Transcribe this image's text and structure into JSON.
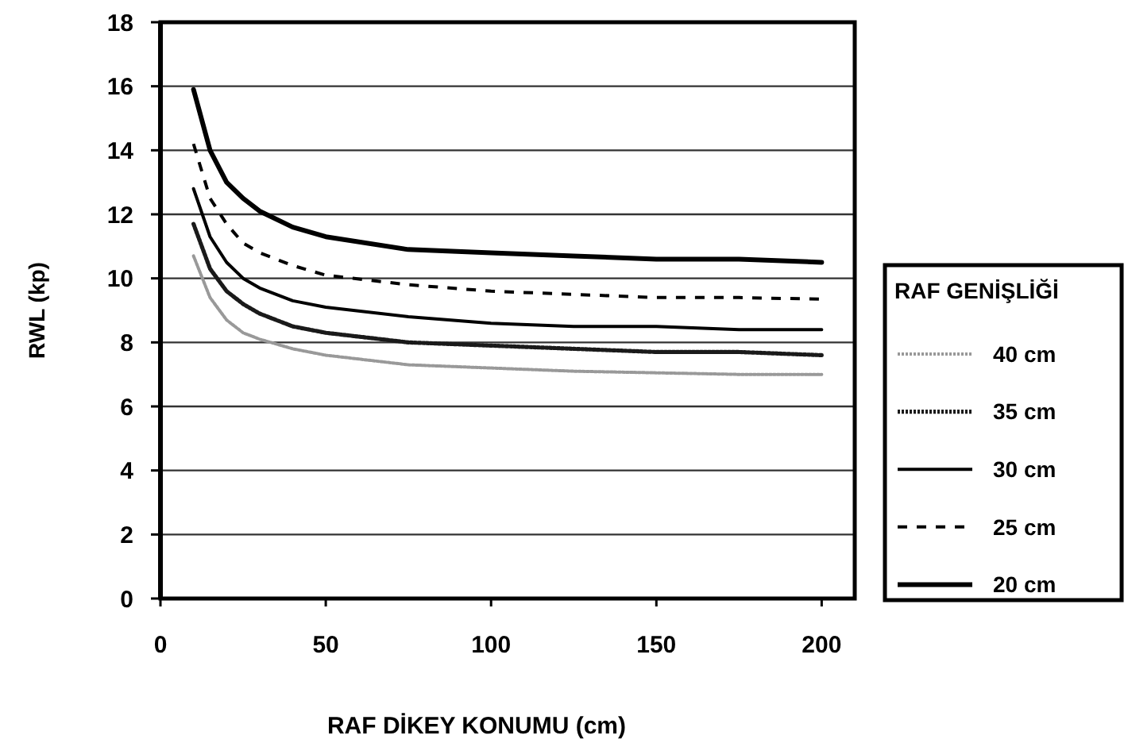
{
  "chart_data": {
    "type": "line",
    "xlabel": "RAF DİKEY KONUMU (cm)",
    "ylabel": "RWL (kp)",
    "legend_title": "RAF GENİŞLİĞİ",
    "x": [
      10,
      15,
      20,
      25,
      30,
      40,
      50,
      75,
      100,
      125,
      150,
      175,
      200
    ],
    "xlim": [
      0,
      210
    ],
    "xticks": [
      0,
      50,
      100,
      150,
      200
    ],
    "ylim": [
      0,
      18
    ],
    "yticks": [
      0,
      2,
      4,
      6,
      8,
      10,
      12,
      14,
      16,
      18
    ],
    "grid": "y",
    "legend": "right",
    "marker": "none",
    "series": [
      {
        "name": "40 cm",
        "color": "#999999",
        "line_style": "dotted",
        "values": [
          10.7,
          9.4,
          8.7,
          8.3,
          8.1,
          7.8,
          7.6,
          7.3,
          7.2,
          7.1,
          7.05,
          7.0,
          7.0
        ]
      },
      {
        "name": "35 cm",
        "color": "#1a1a1a",
        "line_style": "dotted",
        "values": [
          11.7,
          10.3,
          9.6,
          9.2,
          8.9,
          8.5,
          8.3,
          8.0,
          7.9,
          7.8,
          7.7,
          7.7,
          7.6
        ]
      },
      {
        "name": "30 cm",
        "color": "#000000",
        "line_style": "solid",
        "values": [
          12.8,
          11.3,
          10.5,
          10.0,
          9.7,
          9.3,
          9.1,
          8.8,
          8.6,
          8.5,
          8.5,
          8.4,
          8.4
        ]
      },
      {
        "name": "25 cm",
        "color": "#000000",
        "line_style": "dashed",
        "values": [
          14.2,
          12.5,
          11.7,
          11.1,
          10.8,
          10.4,
          10.1,
          9.8,
          9.6,
          9.5,
          9.4,
          9.4,
          9.35
        ]
      },
      {
        "name": "20 cm",
        "color": "#000000",
        "line_style": "solid",
        "values": [
          15.9,
          14.0,
          13.0,
          12.5,
          12.1,
          11.6,
          11.3,
          10.9,
          10.8,
          10.7,
          10.6,
          10.6,
          10.5
        ]
      }
    ]
  }
}
